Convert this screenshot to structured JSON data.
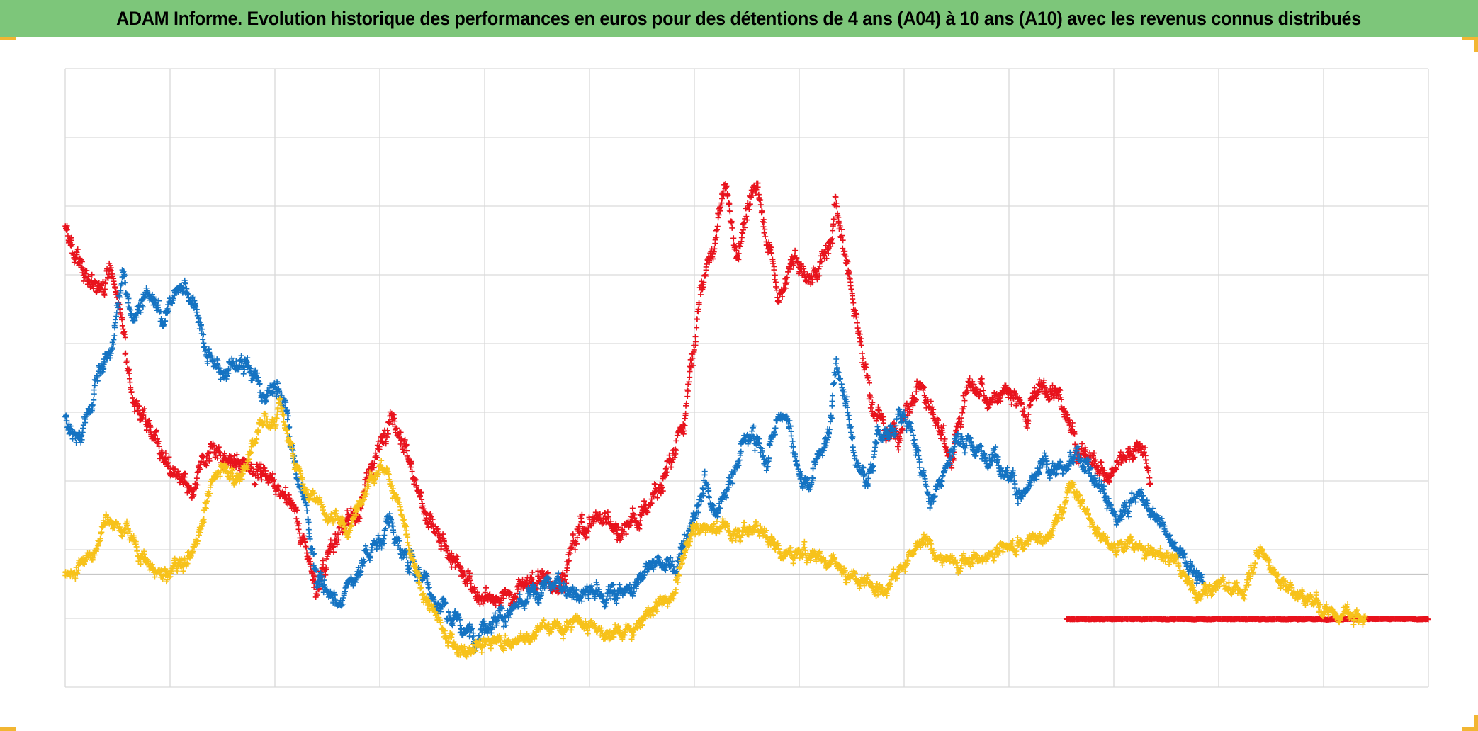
{
  "header": {
    "title": "ADAM Informe. Evolution historique des performances en euros pour des détentions de 4 ans (A04) à 10 ans (A10) avec les revenus connus distribués"
  },
  "colors": {
    "title_bar": "#7dc67a",
    "corner_accent": "#f2b632",
    "grid": "#d9d9d9",
    "zero_line": "#bfbfbf"
  },
  "chart_data": {
    "type": "scatter",
    "title": "ADAM Informe. Evolution historique des performances en euros pour des détentions de 4 ans (A04) à 10 ans (A10) avec les revenus connus distribués",
    "xlabel": "",
    "ylabel": "",
    "xlim": [
      0,
      13
    ],
    "ylim": [
      -1.64,
      7.36
    ],
    "x_gridlines": [
      0,
      1,
      2,
      3,
      4,
      5,
      6,
      7,
      8,
      9,
      10,
      11,
      12,
      13
    ],
    "y_gridlines": [
      -1.64,
      -0.64,
      0.36,
      1.36,
      2.36,
      3.36,
      4.36,
      5.36,
      6.36,
      7.36
    ],
    "zero_line_y": 0,
    "grid": true,
    "legend": "none",
    "marker": "+",
    "series": [
      {
        "name": "red",
        "color": "#e8131d",
        "x_start": 0.0,
        "noise": 0.17,
        "knots": [
          [
            0.0,
            5.0
          ],
          [
            0.08,
            4.6
          ],
          [
            0.2,
            4.4
          ],
          [
            0.3,
            4.1
          ],
          [
            0.42,
            4.5
          ],
          [
            0.55,
            3.7
          ],
          [
            0.65,
            2.5
          ],
          [
            0.8,
            2.2
          ],
          [
            1.0,
            1.6
          ],
          [
            1.2,
            1.1
          ],
          [
            1.4,
            1.9
          ],
          [
            1.6,
            1.6
          ],
          [
            1.8,
            1.6
          ],
          [
            2.0,
            1.3
          ],
          [
            2.2,
            0.9
          ],
          [
            2.4,
            -0.2
          ],
          [
            2.6,
            0.7
          ],
          [
            2.8,
            0.9
          ],
          [
            3.0,
            1.9
          ],
          [
            3.1,
            2.4
          ],
          [
            3.3,
            1.6
          ],
          [
            3.45,
            0.8
          ],
          [
            3.65,
            0.3
          ],
          [
            3.9,
            -0.2
          ],
          [
            4.1,
            -0.4
          ],
          [
            4.3,
            -0.2
          ],
          [
            4.5,
            -0.1
          ],
          [
            4.7,
            -0.1
          ],
          [
            4.9,
            0.6
          ],
          [
            5.1,
            0.9
          ],
          [
            5.3,
            0.6
          ],
          [
            5.5,
            0.9
          ],
          [
            5.7,
            1.3
          ],
          [
            5.9,
            2.2
          ],
          [
            6.0,
            3.3
          ],
          [
            6.05,
            4.0
          ],
          [
            6.2,
            4.9
          ],
          [
            6.3,
            5.6
          ],
          [
            6.4,
            4.6
          ],
          [
            6.5,
            5.3
          ],
          [
            6.6,
            5.7
          ],
          [
            6.7,
            4.9
          ],
          [
            6.8,
            4.0
          ],
          [
            6.95,
            4.6
          ],
          [
            7.1,
            4.2
          ],
          [
            7.3,
            4.8
          ],
          [
            7.35,
            5.5
          ],
          [
            7.45,
            4.5
          ],
          [
            7.55,
            3.7
          ],
          [
            7.7,
            2.4
          ],
          [
            7.85,
            2.0
          ],
          [
            8.0,
            2.3
          ],
          [
            8.15,
            2.8
          ],
          [
            8.3,
            2.2
          ],
          [
            8.45,
            1.6
          ],
          [
            8.6,
            2.7
          ],
          [
            8.8,
            2.6
          ],
          [
            9.0,
            2.6
          ],
          [
            9.15,
            2.4
          ],
          [
            9.3,
            2.7
          ],
          [
            9.45,
            2.6
          ],
          [
            9.55,
            2.4
          ],
          [
            9.65,
            1.9
          ],
          [
            9.8,
            1.6
          ],
          [
            9.95,
            1.4
          ],
          [
            10.1,
            1.8
          ],
          [
            10.25,
            1.9
          ],
          [
            10.35,
            1.4
          ]
        ]
      },
      {
        "name": "red-baseline",
        "color": "#e8131d",
        "x_start": 9.55,
        "noise": 0.006,
        "knots": [
          [
            9.55,
            -0.65
          ],
          [
            13.0,
            -0.65
          ]
        ]
      },
      {
        "name": "blue",
        "color": "#1473c2",
        "x_start": 0.0,
        "noise": 0.15,
        "knots": [
          [
            0.0,
            2.3
          ],
          [
            0.05,
            2.0
          ],
          [
            0.15,
            1.9
          ],
          [
            0.25,
            2.6
          ],
          [
            0.35,
            3.0
          ],
          [
            0.45,
            3.3
          ],
          [
            0.55,
            4.4
          ],
          [
            0.65,
            3.7
          ],
          [
            0.75,
            4.1
          ],
          [
            0.85,
            3.9
          ],
          [
            0.95,
            3.7
          ],
          [
            1.05,
            4.1
          ],
          [
            1.15,
            4.2
          ],
          [
            1.25,
            4.0
          ],
          [
            1.35,
            3.2
          ],
          [
            1.5,
            3.0
          ],
          [
            1.65,
            3.1
          ],
          [
            1.75,
            3.1
          ],
          [
            1.9,
            2.5
          ],
          [
            2.0,
            2.7
          ],
          [
            2.1,
            2.4
          ],
          [
            2.2,
            1.5
          ],
          [
            2.3,
            0.9
          ],
          [
            2.4,
            0.0
          ],
          [
            2.5,
            -0.3
          ],
          [
            2.6,
            -0.4
          ],
          [
            2.7,
            -0.2
          ],
          [
            2.8,
            0.1
          ],
          [
            2.9,
            0.3
          ],
          [
            3.0,
            0.5
          ],
          [
            3.1,
            0.8
          ],
          [
            3.2,
            0.3
          ],
          [
            3.3,
            0.2
          ],
          [
            3.4,
            0.0
          ],
          [
            3.5,
            -0.3
          ],
          [
            3.65,
            -0.6
          ],
          [
            3.8,
            -0.8
          ],
          [
            3.9,
            -0.9
          ],
          [
            4.0,
            -0.7
          ],
          [
            4.2,
            -0.6
          ],
          [
            4.4,
            -0.4
          ],
          [
            4.6,
            -0.2
          ],
          [
            4.8,
            -0.2
          ],
          [
            5.0,
            -0.3
          ],
          [
            5.2,
            -0.3
          ],
          [
            5.4,
            -0.2
          ],
          [
            5.6,
            0.2
          ],
          [
            5.8,
            0.1
          ],
          [
            6.0,
            0.8
          ],
          [
            6.1,
            1.4
          ],
          [
            6.2,
            0.9
          ],
          [
            6.3,
            1.2
          ],
          [
            6.4,
            1.6
          ],
          [
            6.5,
            2.1
          ],
          [
            6.6,
            2.0
          ],
          [
            6.7,
            1.6
          ],
          [
            6.8,
            2.3
          ],
          [
            6.9,
            2.2
          ],
          [
            7.0,
            1.4
          ],
          [
            7.1,
            1.3
          ],
          [
            7.2,
            1.8
          ],
          [
            7.3,
            2.2
          ],
          [
            7.35,
            3.0
          ],
          [
            7.45,
            2.5
          ],
          [
            7.55,
            1.6
          ],
          [
            7.65,
            1.4
          ],
          [
            7.75,
            2.0
          ],
          [
            7.85,
            2.0
          ],
          [
            7.95,
            2.3
          ],
          [
            8.05,
            2.2
          ],
          [
            8.15,
            1.6
          ],
          [
            8.25,
            1.1
          ],
          [
            8.35,
            1.4
          ],
          [
            8.45,
            1.8
          ],
          [
            8.55,
            2.0
          ],
          [
            8.65,
            1.9
          ],
          [
            8.75,
            1.7
          ],
          [
            8.85,
            1.8
          ],
          [
            8.95,
            1.6
          ],
          [
            9.05,
            1.3
          ],
          [
            9.15,
            1.1
          ],
          [
            9.25,
            1.4
          ],
          [
            9.35,
            1.6
          ],
          [
            9.45,
            1.5
          ],
          [
            9.55,
            1.5
          ],
          [
            9.65,
            1.8
          ],
          [
            9.75,
            1.6
          ],
          [
            9.85,
            1.3
          ],
          [
            9.95,
            1.0
          ],
          [
            10.05,
            0.8
          ],
          [
            10.15,
            1.0
          ],
          [
            10.25,
            1.2
          ],
          [
            10.35,
            0.9
          ],
          [
            10.45,
            0.8
          ],
          [
            10.55,
            0.4
          ],
          [
            10.65,
            0.3
          ],
          [
            10.75,
            0.1
          ],
          [
            10.85,
            -0.2
          ]
        ]
      },
      {
        "name": "yellow",
        "color": "#f7c21b",
        "x_start": 0.0,
        "noise": 0.12,
        "knots": [
          [
            0.0,
            0.0
          ],
          [
            0.1,
            0.05
          ],
          [
            0.2,
            0.3
          ],
          [
            0.3,
            0.4
          ],
          [
            0.4,
            0.8
          ],
          [
            0.5,
            0.7
          ],
          [
            0.6,
            0.7
          ],
          [
            0.7,
            0.3
          ],
          [
            0.8,
            0.1
          ],
          [
            0.9,
            0.0
          ],
          [
            1.0,
            0.05
          ],
          [
            1.1,
            0.2
          ],
          [
            1.2,
            0.3
          ],
          [
            1.3,
            0.8
          ],
          [
            1.4,
            1.3
          ],
          [
            1.5,
            1.6
          ],
          [
            1.6,
            1.4
          ],
          [
            1.7,
            1.5
          ],
          [
            1.8,
            1.9
          ],
          [
            1.9,
            2.3
          ],
          [
            2.0,
            2.2
          ],
          [
            2.05,
            2.6
          ],
          [
            2.1,
            2.1
          ],
          [
            2.2,
            1.6
          ],
          [
            2.3,
            1.2
          ],
          [
            2.4,
            1.2
          ],
          [
            2.5,
            0.8
          ],
          [
            2.6,
            0.9
          ],
          [
            2.7,
            0.6
          ],
          [
            2.8,
            1.0
          ],
          [
            2.9,
            1.4
          ],
          [
            3.0,
            1.6
          ],
          [
            3.1,
            1.4
          ],
          [
            3.2,
            0.9
          ],
          [
            3.3,
            0.2
          ],
          [
            3.4,
            -0.2
          ],
          [
            3.5,
            -0.5
          ],
          [
            3.6,
            -0.8
          ],
          [
            3.7,
            -1.0
          ],
          [
            3.8,
            -1.1
          ],
          [
            3.9,
            -1.1
          ],
          [
            4.0,
            -1.0
          ],
          [
            4.2,
            -1.0
          ],
          [
            4.4,
            -0.9
          ],
          [
            4.6,
            -0.8
          ],
          [
            4.8,
            -0.7
          ],
          [
            5.0,
            -0.7
          ],
          [
            5.2,
            -0.9
          ],
          [
            5.4,
            -0.8
          ],
          [
            5.6,
            -0.5
          ],
          [
            5.8,
            -0.3
          ],
          [
            5.9,
            0.3
          ],
          [
            6.0,
            0.7
          ],
          [
            6.2,
            0.7
          ],
          [
            6.4,
            0.6
          ],
          [
            6.6,
            0.7
          ],
          [
            6.8,
            0.4
          ],
          [
            7.0,
            0.3
          ],
          [
            7.2,
            0.3
          ],
          [
            7.4,
            0.1
          ],
          [
            7.6,
            -0.1
          ],
          [
            7.8,
            -0.2
          ],
          [
            8.0,
            0.2
          ],
          [
            8.2,
            0.5
          ],
          [
            8.4,
            0.2
          ],
          [
            8.6,
            0.2
          ],
          [
            8.8,
            0.3
          ],
          [
            9.0,
            0.4
          ],
          [
            9.2,
            0.5
          ],
          [
            9.4,
            0.6
          ],
          [
            9.5,
            0.9
          ],
          [
            9.6,
            1.4
          ],
          [
            9.7,
            1.0
          ],
          [
            9.8,
            0.7
          ],
          [
            9.9,
            0.5
          ],
          [
            10.0,
            0.4
          ],
          [
            10.2,
            0.4
          ],
          [
            10.4,
            0.3
          ],
          [
            10.6,
            0.2
          ],
          [
            10.8,
            -0.3
          ],
          [
            11.0,
            -0.1
          ],
          [
            11.2,
            -0.3
          ],
          [
            11.4,
            0.4
          ],
          [
            11.5,
            0.1
          ],
          [
            11.6,
            -0.1
          ],
          [
            11.8,
            -0.3
          ],
          [
            12.0,
            -0.5
          ],
          [
            12.2,
            -0.55
          ],
          [
            12.4,
            -0.6
          ]
        ]
      }
    ]
  }
}
